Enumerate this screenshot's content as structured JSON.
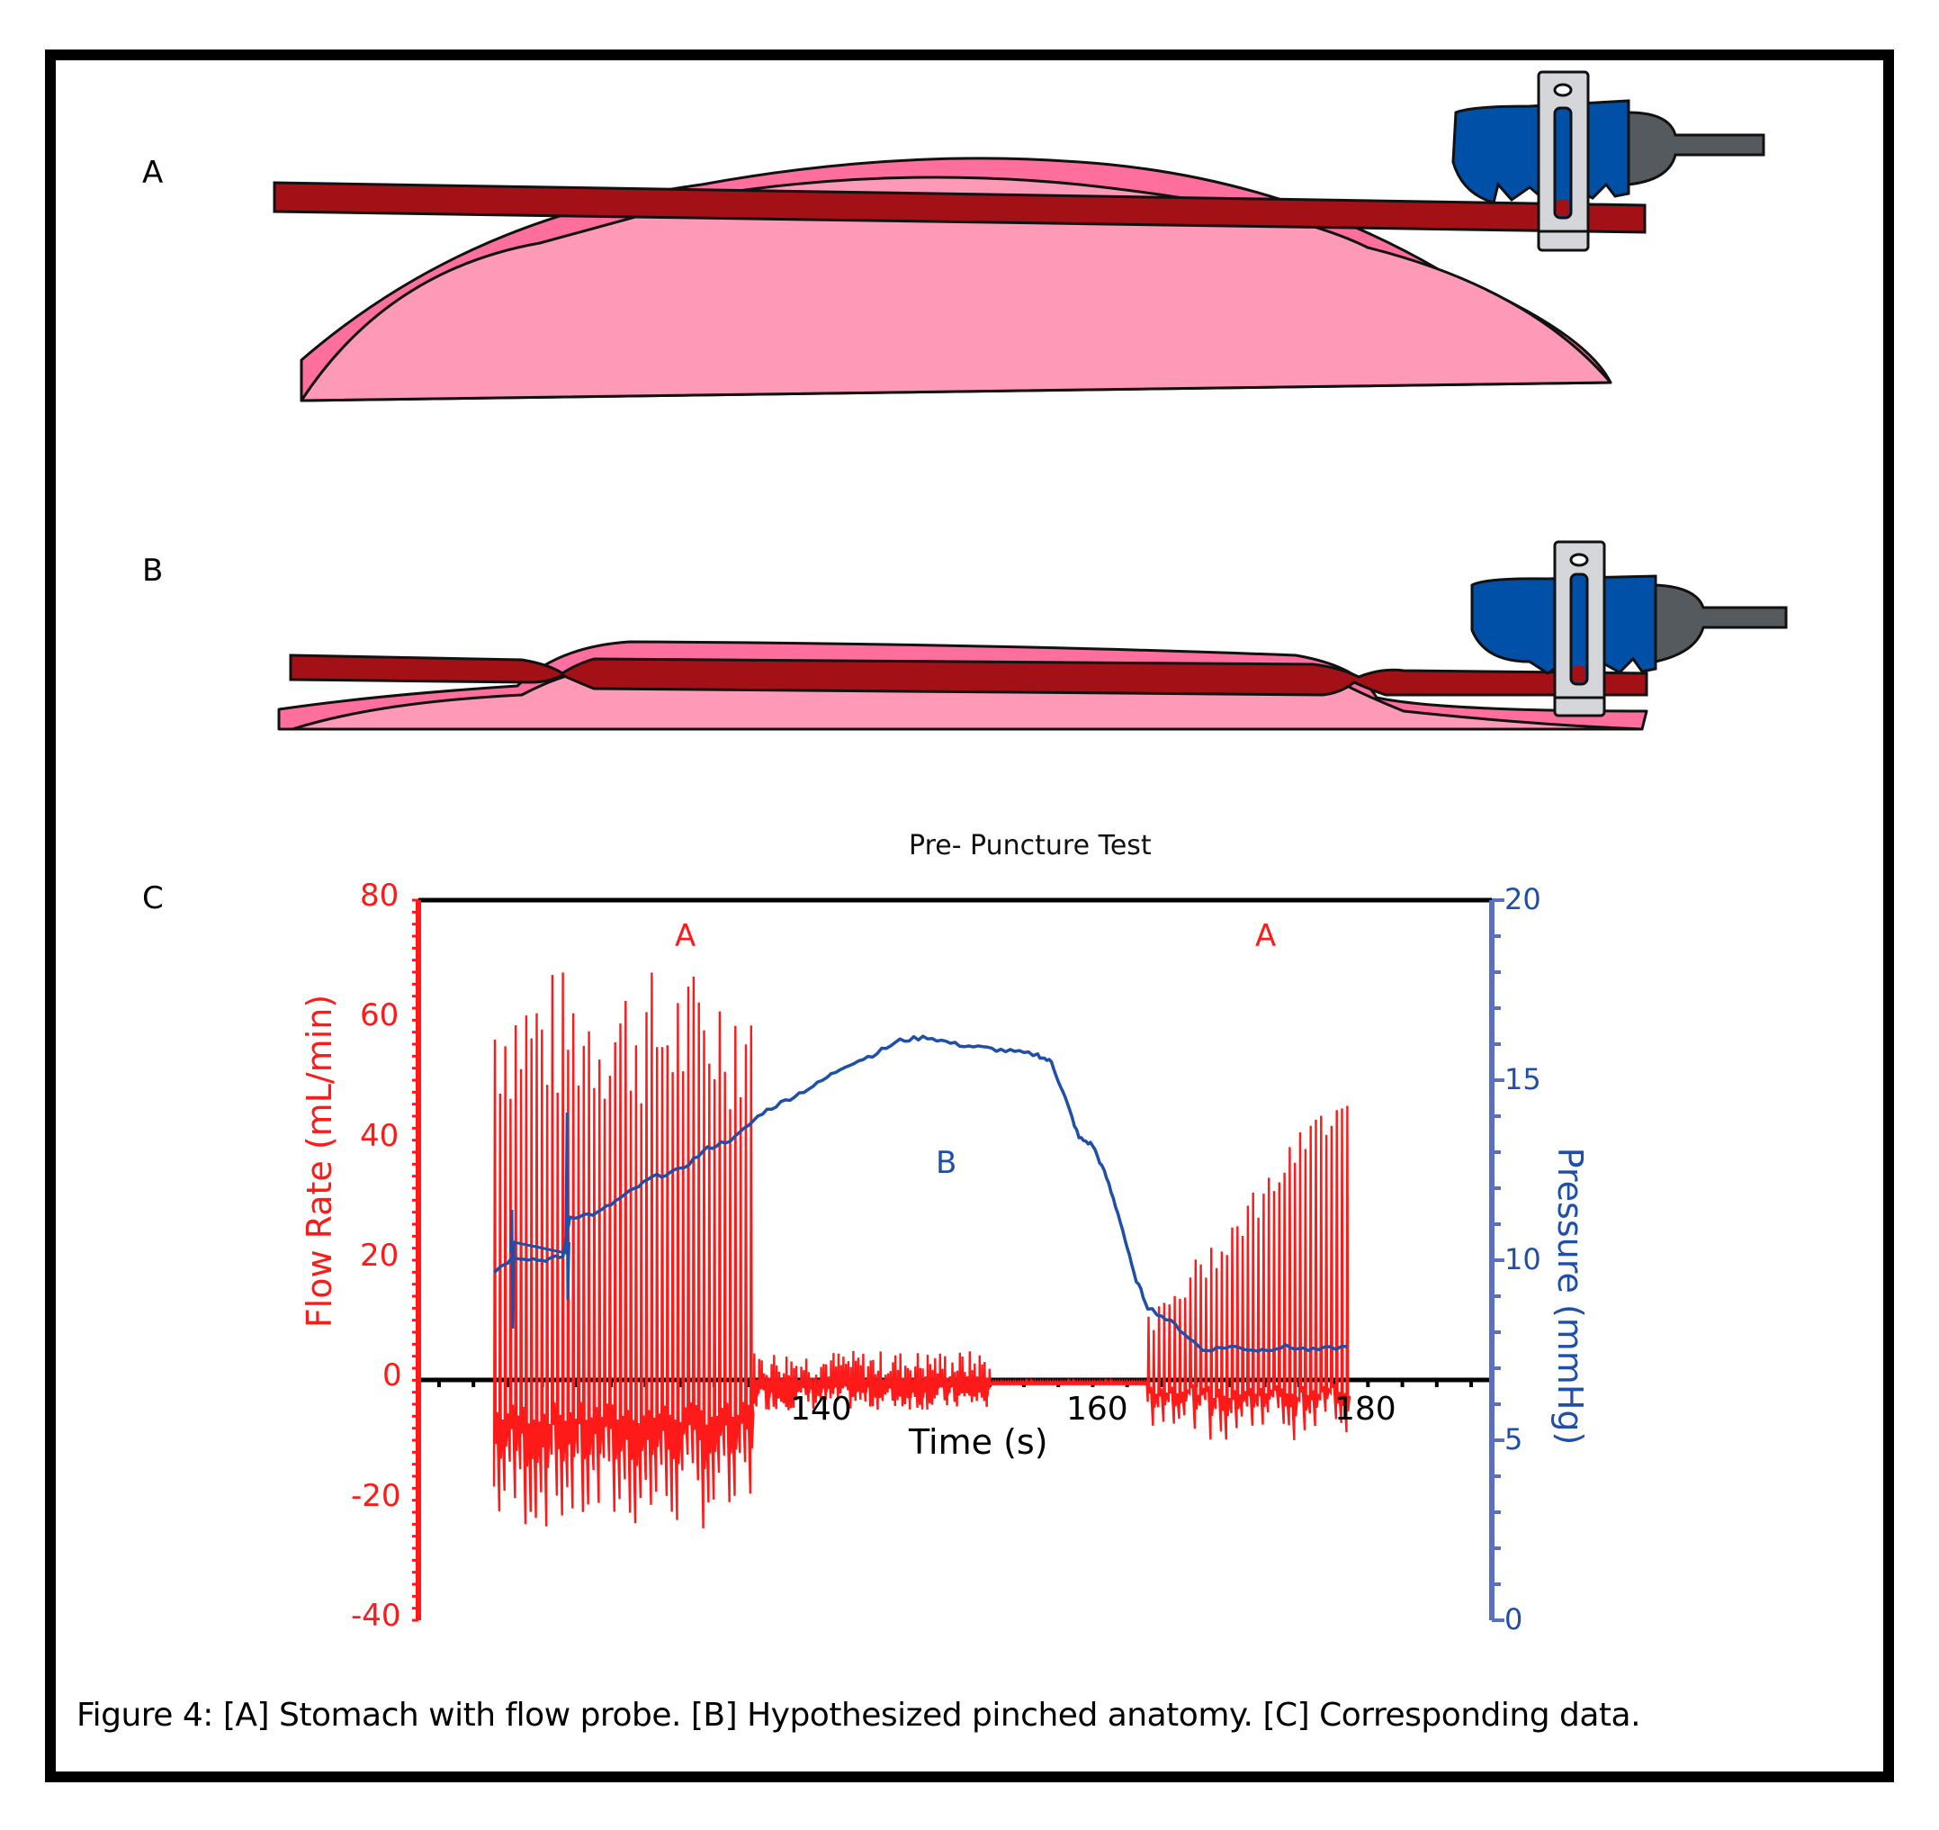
{
  "panels": {
    "a_label": "A",
    "b_label": "B",
    "c_label": "C"
  },
  "colors": {
    "stomach_light": "#ff99b8",
    "stomach_dark": "#ff6f9e",
    "vessel": "#a31016",
    "probe_blue": "#0050a8",
    "probe_gray": "#555a5e",
    "clip": "#d4d6d9",
    "flow_red": "#ff1a1a",
    "pressure_blue": "#1f4fa8",
    "axis_blue": "#5b70c0"
  },
  "chart": {
    "title": "Pre- Puncture Test",
    "annotation_a1": "A",
    "annotation_a2": "A",
    "annotation_b": "B",
    "left_axis_label": "Flow Rate (mL/min)",
    "right_axis_label": "Pressure (mmHg)",
    "x_axis_label": "Time (s)",
    "left_ticks": [
      "80",
      "60",
      "40",
      "20",
      "0",
      "-20",
      "-40"
    ],
    "right_ticks": [
      "20",
      "15",
      "10",
      "5",
      "0"
    ],
    "x_ticks": [
      "140",
      "160",
      "180"
    ]
  },
  "caption": "Figure 4: [A] Stomach with flow probe. [B] Hypothesized pinched anatomy. [C] Corresponding data.",
  "chart_data": {
    "type": "line",
    "title": "Pre- Puncture Test",
    "xlabel": "Time (s)",
    "ylabel": "Flow Rate (mL/min)",
    "y2label": "Pressure (mmHg)",
    "xlim": [
      111,
      189
    ],
    "ylim": [
      -40,
      80
    ],
    "y2lim": [
      0,
      20
    ],
    "x_ticks": [
      140,
      160,
      180
    ],
    "y_ticks": [
      -40,
      -20,
      0,
      20,
      40,
      60,
      80
    ],
    "y2_ticks": [
      0,
      5,
      10,
      15,
      20
    ],
    "annotations": [
      {
        "text": "A",
        "x": 125,
        "y": 74,
        "color": "red"
      },
      {
        "text": "B",
        "x": 149,
        "y": 36,
        "color": "blue"
      },
      {
        "text": "A",
        "x": 173,
        "y": 74,
        "color": "red"
      }
    ],
    "series": [
      {
        "name": "Flow Rate (mL/min)",
        "axis": "left",
        "color": "#ff1a1a",
        "description": "Pulsatile oscillation",
        "segments": [
          {
            "t_start": 116.5,
            "t_end": 135.2,
            "peak_max_range": [
              45,
              69
            ],
            "trough_min_range": [
              -25,
              -12
            ],
            "phase": "A"
          },
          {
            "t_start": 135.2,
            "t_end": 164.0,
            "peak_max_range": [
              0,
              5
            ],
            "trough_min_range": [
              -5,
              -1
            ],
            "phase": "B (damped)"
          },
          {
            "t_start": 164.0,
            "t_end": 178.5,
            "peak_max_range": [
              5,
              47
            ],
            "trough_min_range": [
              -10,
              -2
            ],
            "phase": "A"
          }
        ]
      },
      {
        "name": "Pressure (mmHg)",
        "axis": "right",
        "color": "#1f4fa8",
        "x": [
          116.5,
          118,
          120,
          121.5,
          122,
          124,
          126,
          128,
          130,
          132,
          134,
          136,
          138,
          140,
          142,
          144,
          146,
          148,
          150,
          152,
          154,
          156,
          157,
          158,
          159,
          160,
          161,
          162,
          163,
          164,
          166,
          168,
          170,
          172,
          174,
          176,
          178.5
        ],
        "values": [
          9.7,
          10.1,
          10.0,
          10.1,
          11.2,
          11.3,
          11.8,
          12.3,
          12.5,
          13.1,
          13.4,
          14.1,
          14.5,
          14.9,
          15.4,
          15.7,
          16.1,
          16.2,
          16.0,
          15.9,
          15.8,
          15.7,
          15.5,
          14.5,
          13.4,
          13.2,
          12.3,
          11.1,
          9.6,
          8.7,
          8.2,
          7.5,
          7.6,
          7.5,
          7.6,
          7.5,
          7.6
        ]
      }
    ]
  }
}
